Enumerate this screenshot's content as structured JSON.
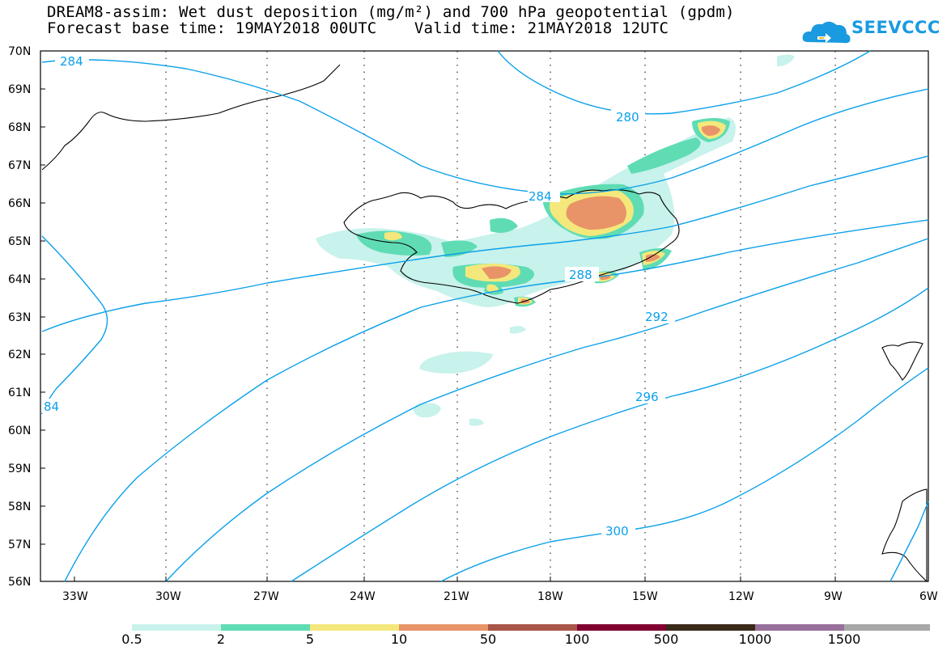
{
  "title": {
    "line1": "DREAM8-assim: Wet dust deposition (mg/m²) and 700 hPa geopotential (gpdm)",
    "line2": "Forecast base time: 19MAY2018 00UTC    Valid time: 21MAY2018 12UTC"
  },
  "logo": {
    "text": "SEEVCCC",
    "color": "#1a9ae0"
  },
  "axes": {
    "lat_labels": [
      "70N",
      "69N",
      "68N",
      "67N",
      "66N",
      "65N",
      "64N",
      "63N",
      "62N",
      "61N",
      "60N",
      "59N",
      "58N",
      "57N",
      "56N"
    ],
    "lon_labels": [
      "33W",
      "30W",
      "27W",
      "24W",
      "21W",
      "18W",
      "15W",
      "12W",
      "9W",
      "6W"
    ]
  },
  "contour_labels": [
    "284",
    "280",
    "284",
    "288",
    "292",
    "296",
    "300",
    "84"
  ],
  "contour_color": "#0aa0ea",
  "legend": {
    "colors": [
      "#c8f2ec",
      "#5fdcb4",
      "#f4e87c",
      "#e89468",
      "#a85648",
      "#800030",
      "#3a2a1a",
      "#98709c",
      "#a8a8a8"
    ],
    "labels": [
      "0.5",
      "2",
      "5",
      "10",
      "50",
      "100",
      "500",
      "1000",
      "1500"
    ]
  }
}
